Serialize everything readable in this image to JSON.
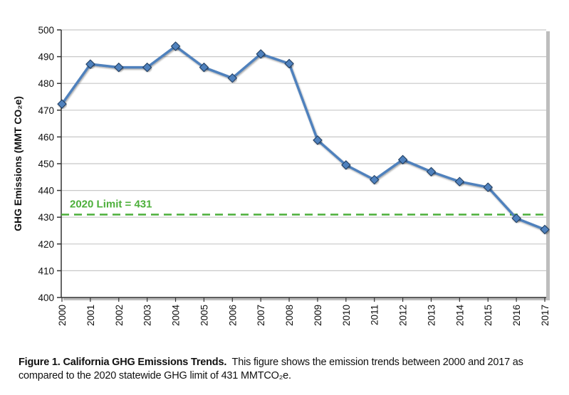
{
  "chart_data": {
    "type": "line",
    "title": "",
    "xlabel": "",
    "ylabel": "GHG Emissions (MMT CO₂e)",
    "ylim": [
      400,
      500
    ],
    "yticks": [
      400,
      410,
      420,
      430,
      440,
      450,
      460,
      470,
      480,
      490,
      500
    ],
    "grid": true,
    "categories": [
      "2000",
      "2001",
      "2002",
      "2003",
      "2004",
      "2005",
      "2006",
      "2007",
      "2008",
      "2009",
      "2010",
      "2011",
      "2012",
      "2013",
      "2014",
      "2015",
      "2016",
      "2017"
    ],
    "series": [
      {
        "values": [
          472.3,
          487.2,
          486.0,
          486.0,
          493.9,
          486.0,
          482.0,
          491.0,
          487.4,
          458.8,
          449.5,
          444.0,
          451.5,
          447.0,
          443.3,
          441.2,
          429.6,
          425.4
        ],
        "color": "#4f81bd",
        "marker": "diamond"
      }
    ],
    "reference_line": {
      "value": 431,
      "label": "2020 Limit = 431",
      "color": "#4caf3a",
      "style": "dashed"
    }
  },
  "caption": {
    "bold": "Figure 1. California GHG Emissions Trends.",
    "text": "  This figure shows the emission trends between 2000 and 2017 as compared to the 2020 statewide GHG limit of 431 MMTCO₂e."
  }
}
